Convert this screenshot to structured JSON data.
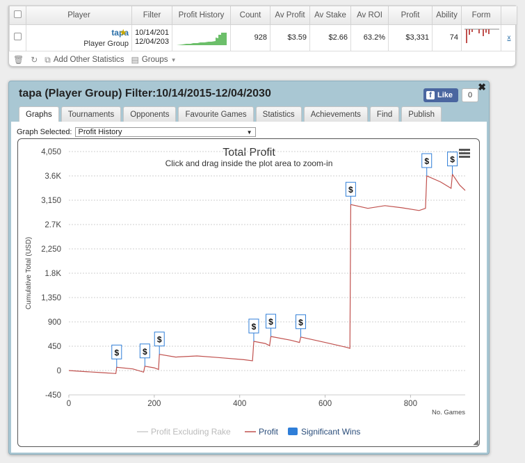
{
  "table": {
    "headers": [
      "",
      "Player",
      "Filter",
      "Profit History",
      "Count",
      "Av Profit",
      "Av Stake",
      "Av ROI",
      "Profit",
      "Ability",
      "Form",
      ""
    ],
    "row": {
      "player_name": "tapa",
      "player_group": "Player Group",
      "filter_line1": "10/14/201",
      "filter_line2": "12/04/203",
      "count": "928",
      "av_profit": "$3.59",
      "av_stake": "$2.66",
      "av_roi": "63.2%",
      "profit": "$3,331",
      "ability": "74",
      "remove": "x"
    },
    "toolbar": {
      "add_stats": "Add Other Statistics",
      "groups": "Groups"
    }
  },
  "dialog": {
    "title": "tapa (Player Group) Filter:10/14/2015-12/04/2030",
    "like_label": "Like",
    "like_count": "0",
    "tabs": [
      "Graphs",
      "Tournaments",
      "Opponents",
      "Favourite Games",
      "Statistics",
      "Achievements",
      "Find",
      "Publish"
    ],
    "active_tab": "Graphs",
    "graph_selected_label": "Graph Selected:",
    "graph_selected_value": "Profit History"
  },
  "chart_data": {
    "type": "line",
    "title": "Total Profit",
    "subtitle": "Click and drag inside the plot area to zoom-in",
    "ylabel": "Cumulative Total (USD)",
    "xlabel": "No. Games",
    "ylim": [
      -450,
      4050
    ],
    "xlim": [
      0,
      928
    ],
    "y_ticks": [
      "4,050",
      "3.6K",
      "3,150",
      "2.7K",
      "2,250",
      "1.8K",
      "1,350",
      "900",
      "450",
      "0",
      "-450"
    ],
    "x_ticks": [
      "0",
      "200",
      "400",
      "600",
      "800"
    ],
    "legend": [
      "Profit Excluding Rake",
      "Profit",
      "Significant Wins"
    ],
    "colors": {
      "profit": "#c0504d",
      "profit_excl_rake": "#cccccc",
      "significant_wins": "#2f7ed8"
    },
    "series": [
      {
        "name": "Profit",
        "points": [
          [
            0,
            0
          ],
          [
            40,
            -20
          ],
          [
            80,
            -40
          ],
          [
            110,
            -55
          ],
          [
            112,
            60
          ],
          [
            150,
            30
          ],
          [
            175,
            -30
          ],
          [
            178,
            80
          ],
          [
            200,
            50
          ],
          [
            210,
            20
          ],
          [
            212,
            300
          ],
          [
            250,
            250
          ],
          [
            300,
            270
          ],
          [
            350,
            240
          ],
          [
            410,
            200
          ],
          [
            430,
            180
          ],
          [
            433,
            540
          ],
          [
            460,
            500
          ],
          [
            470,
            460
          ],
          [
            473,
            630
          ],
          [
            520,
            560
          ],
          [
            540,
            520
          ],
          [
            543,
            620
          ],
          [
            600,
            520
          ],
          [
            650,
            430
          ],
          [
            658,
            410
          ],
          [
            660,
            3070
          ],
          [
            700,
            3000
          ],
          [
            740,
            3050
          ],
          [
            780,
            3010
          ],
          [
            820,
            2960
          ],
          [
            835,
            3000
          ],
          [
            838,
            3600
          ],
          [
            870,
            3490
          ],
          [
            895,
            3370
          ],
          [
            898,
            3630
          ],
          [
            915,
            3430
          ],
          [
            928,
            3331
          ]
        ]
      }
    ],
    "significant_wins": [
      112,
      178,
      212,
      433,
      473,
      543,
      660,
      838,
      898
    ]
  }
}
